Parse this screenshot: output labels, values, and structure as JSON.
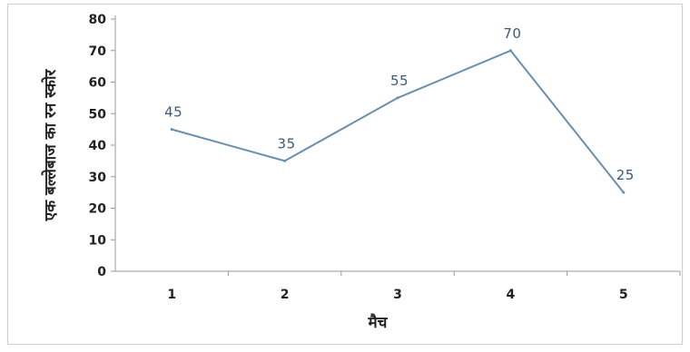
{
  "chart_data": {
    "type": "line",
    "title": "",
    "xlabel": "मैच",
    "ylabel": "एक बल्लेबाज का रन स्कोर",
    "categories": [
      "1",
      "2",
      "3",
      "4",
      "5"
    ],
    "series": [
      {
        "values": [
          45,
          35,
          55,
          70,
          25
        ]
      }
    ],
    "ylim": [
      0,
      80
    ],
    "yticks": [
      0,
      10,
      20,
      30,
      40,
      50,
      60,
      70,
      80
    ],
    "grid": false,
    "legend": "none",
    "data_labels": true,
    "colors": {
      "line": "#6a8fae",
      "data_label": "#3b5a7a",
      "axis": "#999999",
      "text": "#222222"
    }
  }
}
